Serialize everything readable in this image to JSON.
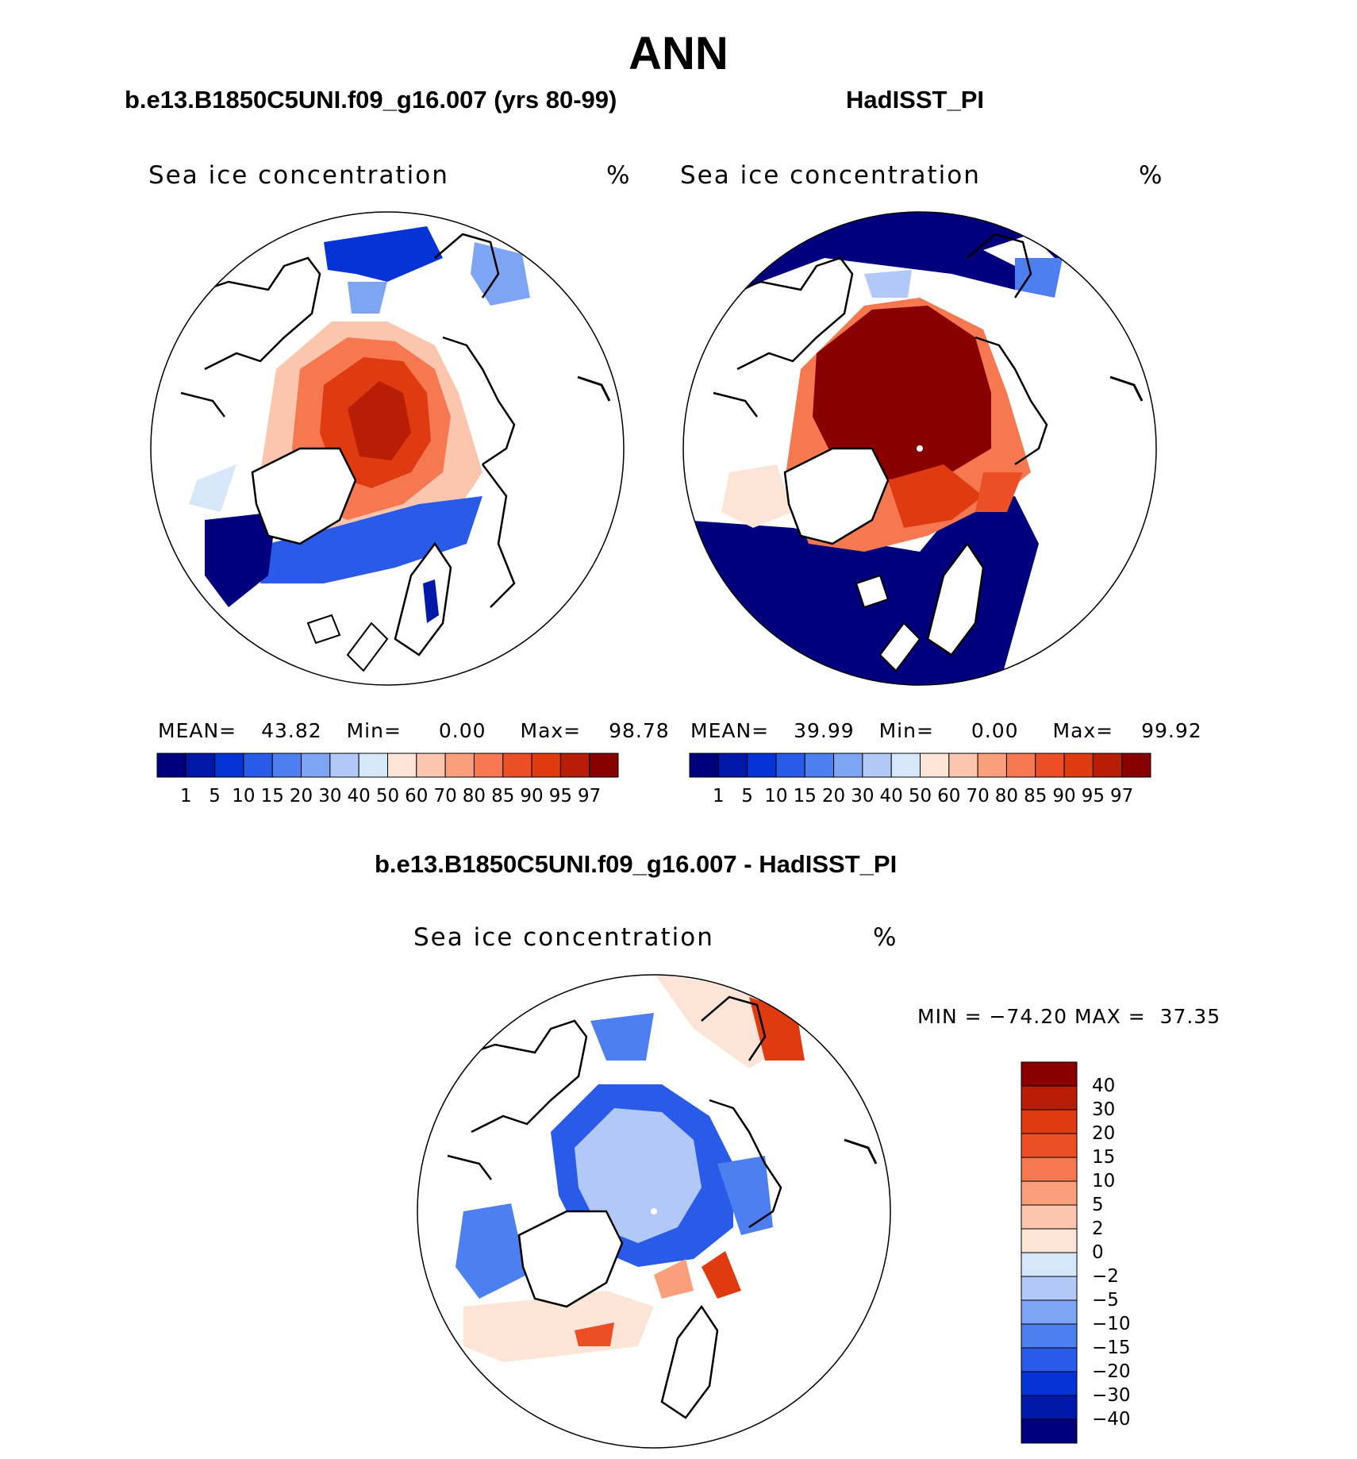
{
  "title": "ANN",
  "panels": [
    {
      "id": "model",
      "subtitle": "b.e13.B1850C5UNI.f09_g16.007 (yrs 80-99)",
      "variable": "Sea ice concentration",
      "units": "%",
      "stats": {
        "mean_label": "MEAN=",
        "mean": "43.82",
        "min_label": "Min=",
        "min": "0.00",
        "max_label": "Max=",
        "max": "98.78"
      }
    },
    {
      "id": "obs",
      "subtitle": "HadISST_PI",
      "variable": "Sea ice concentration",
      "units": "%",
      "stats": {
        "mean_label": "MEAN=",
        "mean": "39.99",
        "min_label": "Min=",
        "min": "0.00",
        "max_label": "Max=",
        "max": "99.92"
      }
    },
    {
      "id": "diff",
      "subtitle": "b.e13.B1850C5UNI.f09_g16.007 - HadISST_PI",
      "variable": "Sea ice concentration",
      "units": "%",
      "stats_text": "MIN = −74.20 MAX =  37.35"
    }
  ],
  "colorbars": {
    "concentration": {
      "levels": [
        "1",
        "5",
        "10",
        "15",
        "20",
        "30",
        "40",
        "50",
        "60",
        "70",
        "80",
        "85",
        "90",
        "95",
        "97"
      ],
      "colors": [
        "#00007f",
        "#0018a8",
        "#0633d6",
        "#2a5ae8",
        "#4d7ff0",
        "#7ea5f4",
        "#b2c9f8",
        "#d7e7fa",
        "#fce5d7",
        "#fcc6ae",
        "#fa9f7c",
        "#f57850",
        "#ec4f26",
        "#e03a10",
        "#b81d06",
        "#8a0000"
      ]
    },
    "difference": {
      "levels": [
        "40",
        "30",
        "20",
        "15",
        "10",
        "5",
        "2",
        "0",
        "−2",
        "−5",
        "−10",
        "−15",
        "−20",
        "−30",
        "−40"
      ],
      "colors": [
        "#8a0000",
        "#b81d06",
        "#e03a10",
        "#ec4f26",
        "#f57850",
        "#fa9f7c",
        "#fcc6ae",
        "#fce5d7",
        "#d7e7fa",
        "#b2c9f8",
        "#7ea5f4",
        "#4d7ff0",
        "#2a5ae8",
        "#0633d6",
        "#0018a8",
        "#00007f"
      ]
    }
  },
  "chart_data": [
    {
      "type": "heatmap",
      "projection": "polar stereographic (north)",
      "title": "b.e13.B1850C5UNI.f09_g16.007 (yrs 80-99)",
      "variable": "Sea ice concentration",
      "units": "%",
      "mean": 43.82,
      "min": 0.0,
      "max": 98.78,
      "contour_levels": [
        1,
        5,
        10,
        15,
        20,
        30,
        40,
        50,
        60,
        70,
        80,
        85,
        90,
        95,
        97
      ]
    },
    {
      "type": "heatmap",
      "projection": "polar stereographic (north)",
      "title": "HadISST_PI",
      "variable": "Sea ice concentration",
      "units": "%",
      "mean": 39.99,
      "min": 0.0,
      "max": 99.92,
      "contour_levels": [
        1,
        5,
        10,
        15,
        20,
        30,
        40,
        50,
        60,
        70,
        80,
        85,
        90,
        95,
        97
      ]
    },
    {
      "type": "heatmap",
      "projection": "polar stereographic (north)",
      "title": "b.e13.B1850C5UNI.f09_g16.007 - HadISST_PI",
      "variable": "Sea ice concentration",
      "units": "%",
      "min": -74.2,
      "max": 37.35,
      "contour_levels": [
        -40,
        -30,
        -20,
        -15,
        -10,
        -5,
        -2,
        0,
        2,
        5,
        10,
        15,
        20,
        30,
        40
      ]
    }
  ]
}
